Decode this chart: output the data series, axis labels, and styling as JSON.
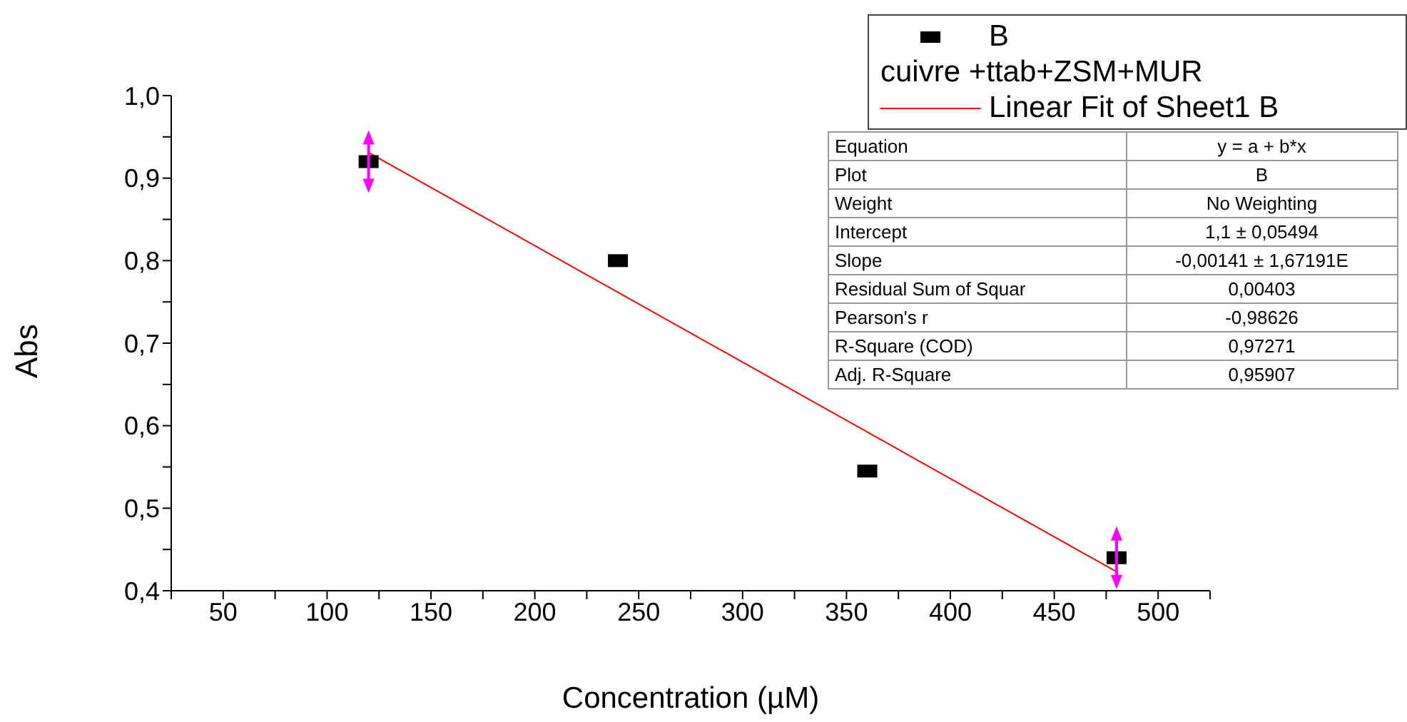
{
  "chart_data": {
    "type": "scatter",
    "xlabel": "Concentration (µM)",
    "ylabel": "Abs",
    "xlim": [
      25,
      525
    ],
    "xticks": [
      {
        "value": 25,
        "label": null
      },
      50,
      {
        "value": 75,
        "label": null
      },
      100,
      {
        "value": 125,
        "label": null
      },
      150,
      {
        "value": 175,
        "label": null
      },
      200,
      {
        "value": 225,
        "label": null
      },
      250,
      {
        "value": 275,
        "label": null
      },
      300,
      {
        "value": 325,
        "label": null
      },
      350,
      {
        "value": 375,
        "label": null
      },
      400,
      {
        "value": 425,
        "label": null
      },
      450,
      {
        "value": 475,
        "label": null
      },
      500,
      {
        "value": 525,
        "label": null
      }
    ],
    "ylim": [
      0.4,
      1.0
    ],
    "yticks": [
      {
        "value": 0.4,
        "label": "0,4"
      },
      {
        "value": 0.45,
        "label": null
      },
      {
        "value": 0.5,
        "label": "0,5"
      },
      {
        "value": 0.55,
        "label": null
      },
      {
        "value": 0.6,
        "label": "0,6"
      },
      {
        "value": 0.65,
        "label": null
      },
      {
        "value": 0.7,
        "label": "0,7"
      },
      {
        "value": 0.75,
        "label": null
      },
      {
        "value": 0.8,
        "label": "0,8"
      },
      {
        "value": 0.85,
        "label": null
      },
      {
        "value": 0.9,
        "label": "0,9"
      },
      {
        "value": 0.95,
        "label": null
      },
      {
        "value": 1.0,
        "label": "1,0"
      }
    ],
    "legend": "top right",
    "series": [
      {
        "name": "B",
        "marker": "square",
        "color": "#000000",
        "x": [
          120,
          240,
          360,
          480
        ],
        "values": [
          0.92,
          0.8,
          0.545,
          0.44
        ]
      },
      {
        "name": "Linear Fit of Sheet1 B",
        "type": "line",
        "color": "#ff0000",
        "x": [
          120,
          480
        ],
        "values": [
          0.931,
          0.423
        ]
      }
    ],
    "annotations": [
      "cuivre +ttab+ZSM+MUR",
      "Equation",
      "y = a + b*x",
      "Plot",
      "B",
      "Weight",
      "No Weighting",
      "Intercept",
      "1,1 ± 0,05494",
      "Slope",
      "-0,00141 ± 1,67191E",
      "Residual Sum of Squar",
      "0,00403",
      "Pearson's r",
      "-0,98626",
      "R-Square (COD)",
      "0,97271",
      "Adj. R-Square",
      "0,95907"
    ]
  }
}
